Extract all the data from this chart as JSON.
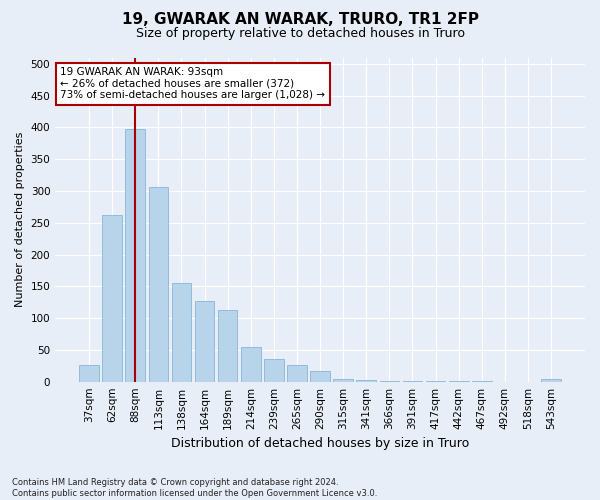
{
  "title": "19, GWARAK AN WARAK, TRURO, TR1 2FP",
  "subtitle": "Size of property relative to detached houses in Truro",
  "xlabel": "Distribution of detached houses by size in Truro",
  "ylabel": "Number of detached properties",
  "categories": [
    "37sqm",
    "62sqm",
    "88sqm",
    "113sqm",
    "138sqm",
    "164sqm",
    "189sqm",
    "214sqm",
    "239sqm",
    "265sqm",
    "290sqm",
    "315sqm",
    "341sqm",
    "366sqm",
    "391sqm",
    "417sqm",
    "442sqm",
    "467sqm",
    "492sqm",
    "518sqm",
    "543sqm"
  ],
  "values": [
    27,
    263,
    398,
    307,
    155,
    127,
    113,
    55,
    35,
    27,
    17,
    5,
    2,
    1,
    1,
    1,
    1,
    1,
    0,
    0,
    5
  ],
  "bar_color": "#b8d4ea",
  "bar_edge_color": "#7aadd4",
  "vline_x_index": 2,
  "vline_color": "#aa0000",
  "annotation_text": "19 GWARAK AN WARAK: 93sqm\n← 26% of detached houses are smaller (372)\n73% of semi-detached houses are larger (1,028) →",
  "annotation_box_facecolor": "#ffffff",
  "annotation_box_edgecolor": "#aa0000",
  "ylim": [
    0,
    510
  ],
  "yticks": [
    0,
    50,
    100,
    150,
    200,
    250,
    300,
    350,
    400,
    450,
    500
  ],
  "footer": "Contains HM Land Registry data © Crown copyright and database right 2024.\nContains public sector information licensed under the Open Government Licence v3.0.",
  "bg_color": "#e8eef8",
  "plot_bg_color": "#e8eef8",
  "title_fontsize": 11,
  "subtitle_fontsize": 9,
  "tick_fontsize": 7.5,
  "ylabel_fontsize": 8,
  "xlabel_fontsize": 9
}
